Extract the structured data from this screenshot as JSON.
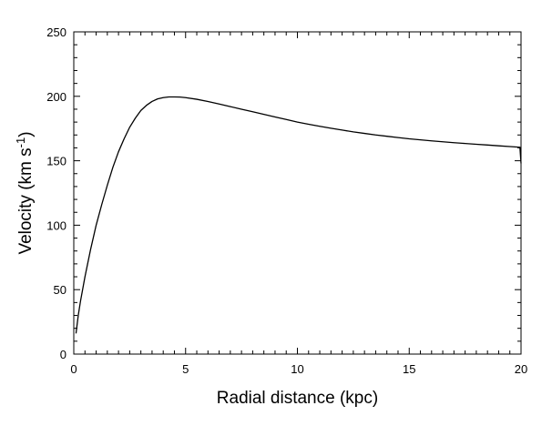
{
  "chart_data": {
    "type": "line",
    "title": "",
    "xlabel": "Radial distance (kpc)",
    "ylabel": {
      "prefix": "Velocity (km s",
      "superscript": "-1",
      "suffix": ")"
    },
    "xlim": [
      0,
      20
    ],
    "ylim": [
      0,
      250
    ],
    "x_ticks": [
      0,
      5,
      10,
      15,
      20
    ],
    "x_tick_labels": [
      "0",
      "5",
      "10",
      "15",
      "20"
    ],
    "y_ticks": [
      0,
      50,
      100,
      150,
      200,
      250
    ],
    "y_tick_labels": [
      "0",
      "50",
      "100",
      "150",
      "200",
      "250"
    ],
    "x_minor_step": 0.5,
    "y_minor_step": 10,
    "grid": false,
    "legend": "none",
    "series": [
      {
        "x": [
          0.1,
          0.2,
          0.3,
          0.5,
          0.75,
          1.0,
          1.25,
          1.5,
          1.75,
          2.0,
          2.25,
          2.5,
          2.75,
          3.0,
          3.25,
          3.5,
          3.75,
          4.0,
          4.25,
          4.5,
          4.75,
          5.0,
          5.5,
          6.0,
          6.5,
          7.0,
          7.5,
          8.0,
          8.5,
          9.0,
          9.5,
          10.0,
          10.5,
          11.0,
          11.5,
          12.0,
          12.5,
          13.0,
          13.5,
          14.0,
          14.5,
          15.0,
          15.5,
          16.0,
          16.5,
          17.0,
          17.5,
          18.0,
          18.5,
          19.0,
          19.5,
          19.95,
          20.0
        ],
        "values": [
          16,
          30,
          41,
          60,
          81,
          100,
          116,
          131,
          145,
          157,
          167,
          176,
          183,
          189,
          193,
          196,
          198,
          199,
          199.5,
          199.5,
          199.4,
          199,
          197.7,
          196,
          194,
          192,
          190,
          188,
          186,
          184,
          182,
          180,
          178.3,
          176.7,
          175.2,
          173.8,
          172.4,
          171.2,
          170,
          169,
          168,
          167,
          166.2,
          165.4,
          164.7,
          164,
          163.4,
          162.8,
          162.2,
          161.6,
          161,
          160.5,
          148
        ]
      }
    ]
  }
}
